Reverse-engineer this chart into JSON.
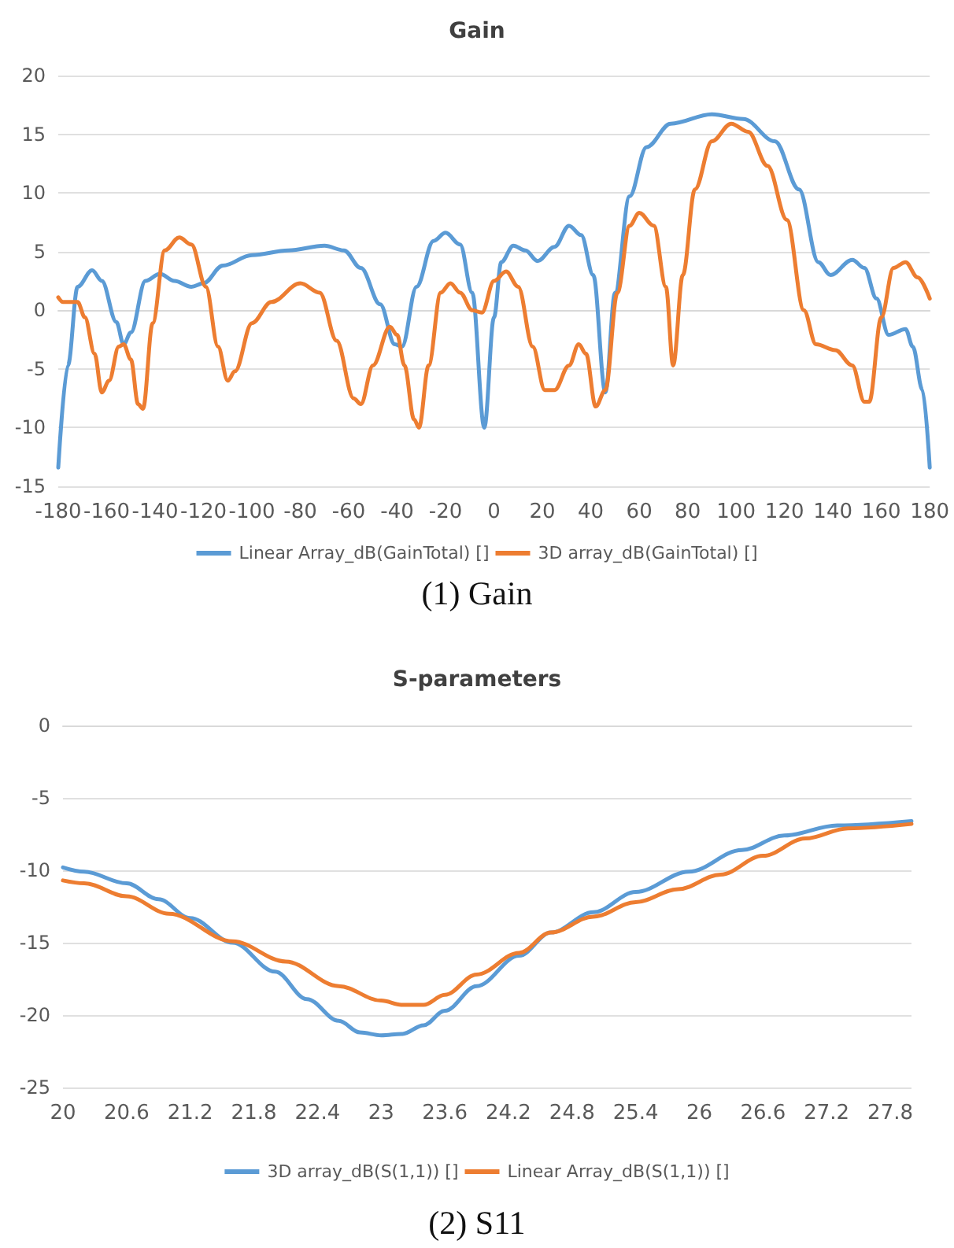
{
  "chart_data": [
    {
      "type": "line",
      "title": "Gain",
      "annotations": [
        "(1) Gain"
      ],
      "xlim": [
        -180,
        180
      ],
      "xticks": [
        -180,
        -160,
        -140,
        -120,
        -100,
        -80,
        -60,
        -40,
        -20,
        0,
        20,
        40,
        60,
        80,
        100,
        120,
        140,
        160,
        180
      ],
      "ylim": [
        -15,
        20
      ],
      "yticks": [
        -15,
        -10,
        -5,
        0,
        5,
        10,
        15,
        20
      ],
      "grid": "y",
      "legend": "bottom",
      "marker": "none",
      "line_style": "solid",
      "series": [
        {
          "name": "Linear Array_dB(GainTotal) []",
          "color": "#5b9bd5",
          "x": [
            -180,
            -176,
            -172,
            -166,
            -162,
            -156,
            -153,
            -150,
            -144,
            -138,
            -132,
            -125,
            -120,
            -112,
            -100,
            -85,
            -70,
            -62,
            -55,
            -47,
            -41,
            -38,
            -32,
            -25,
            -20,
            -14,
            -9,
            -4,
            0,
            3,
            8,
            13,
            18,
            25,
            31,
            36,
            41,
            46,
            50,
            56,
            63,
            73,
            90,
            103,
            116,
            126,
            134,
            139,
            148,
            153,
            158,
            163,
            170,
            173,
            177,
            180
          ],
          "values": [
            -13.4,
            -4.7,
            2,
            3.4,
            2.5,
            -1,
            -2.9,
            -1.9,
            2.5,
            3.1,
            2.5,
            2,
            2.3,
            3.8,
            4.7,
            5.1,
            5.5,
            5.1,
            3.6,
            0.5,
            -2.9,
            -3.1,
            2,
            5.9,
            6.6,
            5.6,
            1.5,
            -10,
            -0.6,
            4.1,
            5.5,
            5.1,
            4.2,
            5.4,
            7.2,
            6.4,
            3,
            -7,
            1.5,
            9.7,
            13.9,
            15.9,
            16.7,
            16.3,
            14.4,
            10.3,
            4.1,
            3,
            4.3,
            3.6,
            1,
            -2.1,
            -1.6,
            -3.1,
            -6.8,
            -13.4
          ]
        },
        {
          "name": "3D array_dB(GainTotal) []",
          "color": "#ed7d31",
          "x": [
            -180,
            -178,
            -172,
            -169,
            -165,
            -162,
            -159,
            -155,
            -153,
            -150,
            -147,
            -145,
            -141,
            -136,
            -130,
            -125,
            -119,
            -114,
            -110,
            -107,
            -100,
            -92,
            -80,
            -72,
            -65,
            -58,
            -55,
            -50,
            -43,
            -40,
            -37,
            -33,
            -31,
            -27,
            -22,
            -18,
            -14,
            -9,
            -5,
            0,
            5,
            10,
            16,
            21,
            25,
            31,
            35,
            38,
            42,
            46,
            51,
            56,
            60,
            66,
            71,
            74,
            78,
            83,
            90,
            98,
            105,
            113,
            121,
            128,
            133,
            141,
            148,
            153,
            155,
            160,
            165,
            170,
            175,
            180
          ],
          "values": [
            1.1,
            0.7,
            0.7,
            -0.6,
            -3.7,
            -7,
            -6,
            -3.1,
            -2.9,
            -4.2,
            -8,
            -8.4,
            -1.1,
            5.1,
            6.2,
            5.6,
            2,
            -3.1,
            -6,
            -5.2,
            -1.1,
            0.7,
            2.3,
            1.5,
            -2.6,
            -7.5,
            -8,
            -4.7,
            -1.4,
            -2.1,
            -4.7,
            -9.3,
            -10,
            -4.7,
            1.5,
            2.3,
            1.5,
            0,
            -0.2,
            2.5,
            3.3,
            2,
            -3.1,
            -6.8,
            -6.8,
            -4.7,
            -2.9,
            -3.7,
            -8.2,
            -6.8,
            1.5,
            7.2,
            8.3,
            7.2,
            2,
            -4.7,
            3,
            10.3,
            14.4,
            15.9,
            15.2,
            12.3,
            7.7,
            0,
            -2.9,
            -3.4,
            -4.7,
            -7.8,
            -7.8,
            -0.6,
            3.6,
            4.1,
            2.8,
            1
          ]
        }
      ]
    },
    {
      "type": "line",
      "title": "S-parameters",
      "annotations": [
        "(2) S11"
      ],
      "xlim": [
        20,
        28
      ],
      "xticks": [
        20,
        20.6,
        21.2,
        21.8,
        22.4,
        23,
        23.6,
        24.2,
        24.8,
        25.4,
        26,
        26.6,
        27.2,
        27.8
      ],
      "ylim": [
        -25,
        0
      ],
      "yticks": [
        -25,
        -20,
        -15,
        -10,
        -5,
        0
      ],
      "grid": "y",
      "legend": "bottom",
      "marker": "none",
      "line_style": "solid",
      "series": [
        {
          "name": "3D array_dB(S(1,1)) []",
          "color": "#5b9bd5",
          "x": [
            20,
            20.2,
            20.6,
            20.9,
            21.2,
            21.6,
            22,
            22.3,
            22.6,
            22.8,
            23,
            23.2,
            23.4,
            23.6,
            23.9,
            24.3,
            24.6,
            25,
            25.4,
            25.9,
            26.4,
            26.8,
            27.3,
            28
          ],
          "values": [
            -9.8,
            -10.1,
            -10.9,
            -12,
            -13.3,
            -15,
            -17,
            -18.9,
            -20.4,
            -21.2,
            -21.4,
            -21.3,
            -20.7,
            -19.7,
            -18,
            -15.9,
            -14.3,
            -12.9,
            -11.5,
            -10.1,
            -8.6,
            -7.6,
            -6.9,
            -6.6
          ]
        },
        {
          "name": "Linear Array_dB(S(1,1)) []",
          "color": "#ed7d31",
          "x": [
            20,
            20.2,
            20.6,
            21,
            21.6,
            22.1,
            22.6,
            23,
            23.2,
            23.4,
            23.6,
            23.9,
            24.3,
            24.6,
            25,
            25.4,
            25.8,
            26.2,
            26.6,
            27,
            27.4,
            28
          ],
          "values": [
            -10.7,
            -10.9,
            -11.8,
            -13,
            -14.9,
            -16.3,
            -18,
            -19,
            -19.3,
            -19.3,
            -18.6,
            -17.2,
            -15.7,
            -14.3,
            -13.2,
            -12.2,
            -11.3,
            -10.3,
            -9,
            -7.8,
            -7.1,
            -6.8
          ]
        }
      ]
    }
  ]
}
